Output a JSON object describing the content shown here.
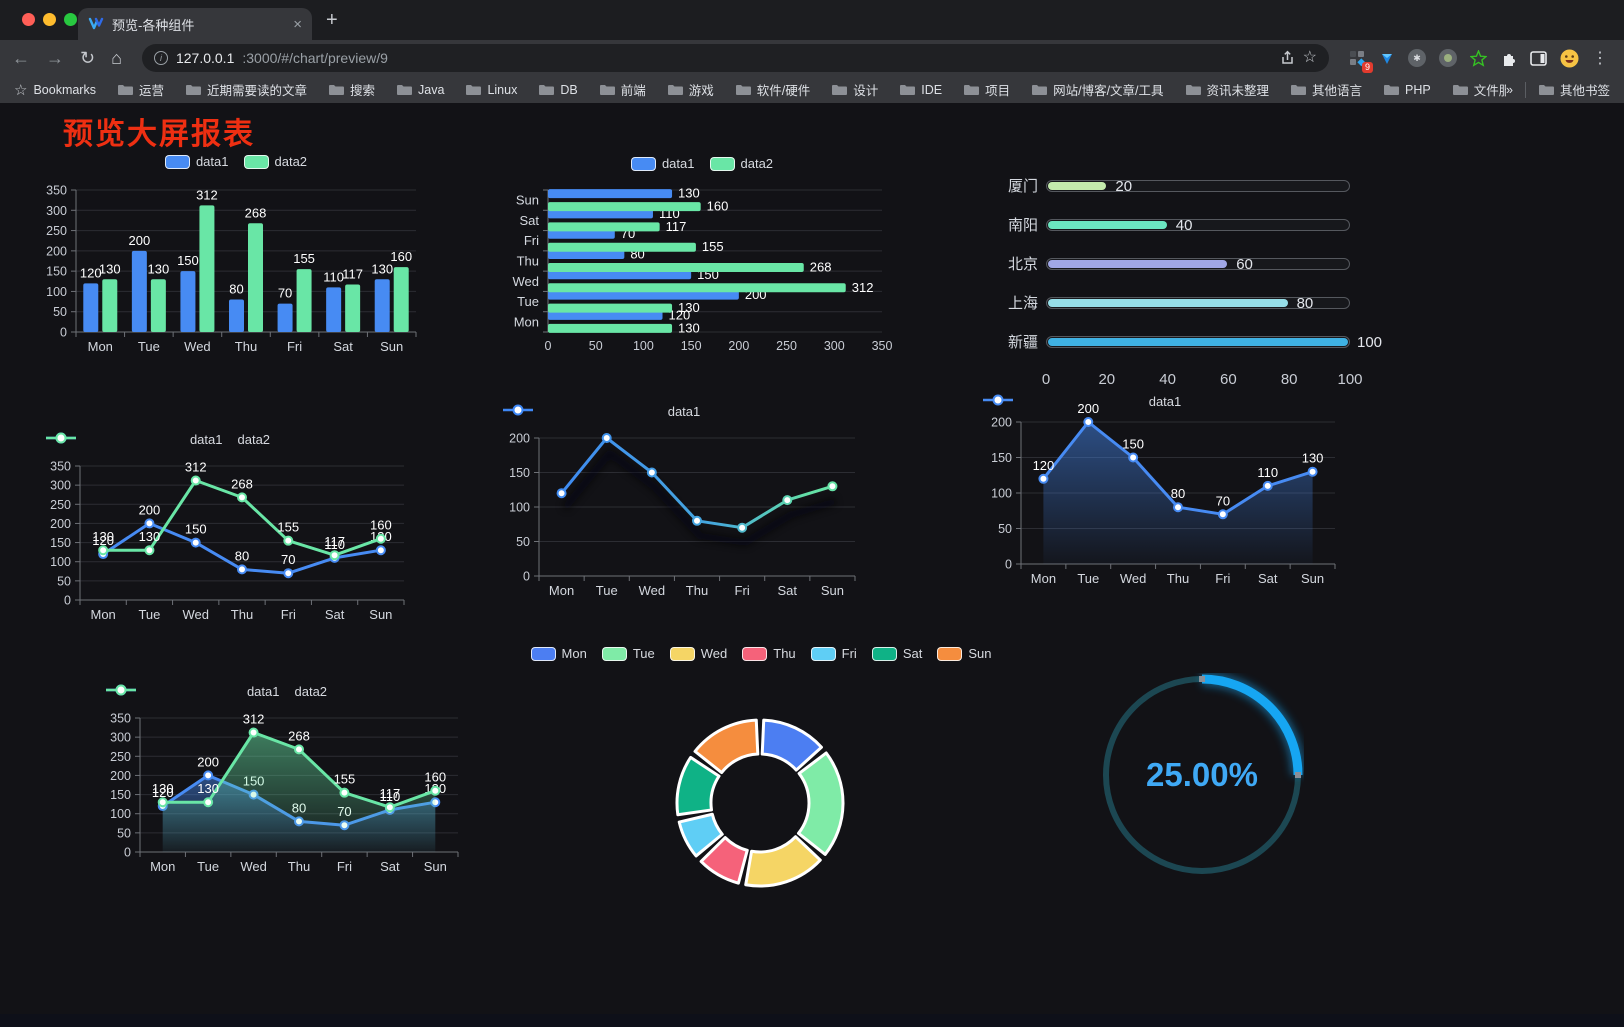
{
  "browser": {
    "tab_title": "预览-各种组件",
    "tab_close": "×",
    "new_tab": "+",
    "url_host": "127.0.0.1",
    "url_rest": ":3000/#/chart/preview/9",
    "bookmarks_label": "Bookmarks",
    "bookmarks": [
      "运营",
      "近期需要读的文章",
      "搜索",
      "Java",
      "Linux",
      "DB",
      "前端",
      "游戏",
      "软件/硬件",
      "设计",
      "IDE",
      "项目",
      "网站/博客/文章/工具",
      "资讯未整理",
      "其他语言",
      "PHP",
      "文件服务器"
    ],
    "bookmarks_overflow": "»",
    "other_bookmarks": "其他书签",
    "extensions_badge": "9",
    "menu_dots": "⋮"
  },
  "page": {
    "title": "预览大屏报表"
  },
  "chart_data": [
    {
      "id": "c1",
      "type": "bar",
      "categories": [
        "Mon",
        "Tue",
        "Wed",
        "Thu",
        "Fri",
        "Sat",
        "Sun"
      ],
      "series": [
        {
          "name": "data1",
          "color": "#478BF3",
          "values": [
            120,
            200,
            150,
            80,
            70,
            110,
            130
          ]
        },
        {
          "name": "data2",
          "color": "#69E6A6",
          "values": [
            130,
            130,
            312,
            268,
            155,
            117,
            160
          ]
        }
      ],
      "ylim": [
        0,
        350
      ],
      "yticks": [
        0,
        50,
        100,
        150,
        200,
        250,
        300,
        350
      ],
      "show_labels": true,
      "legend_pos": "top"
    },
    {
      "id": "c2",
      "type": "barh",
      "categories": [
        "Mon",
        "Tue",
        "Wed",
        "Thu",
        "Fri",
        "Sat",
        "Sun"
      ],
      "series": [
        {
          "name": "data1",
          "color": "#478BF3",
          "values": [
            120,
            200,
            150,
            80,
            70,
            110,
            130
          ]
        },
        {
          "name": "data2",
          "color": "#69E6A6",
          "values": [
            130,
            130,
            312,
            268,
            155,
            117,
            160
          ]
        }
      ],
      "xlim": [
        0,
        350
      ],
      "xticks": [
        0,
        50,
        100,
        150,
        200,
        250,
        300,
        350
      ],
      "show_labels": true,
      "legend_pos": "top"
    },
    {
      "id": "c3",
      "type": "progress",
      "max": 100,
      "items": [
        {
          "label": "厦门",
          "value": 20,
          "color": "#C4EBAD"
        },
        {
          "label": "南阳",
          "value": 40,
          "color": "#6BE6C1"
        },
        {
          "label": "北京",
          "value": 60,
          "color": "#A0A7E6"
        },
        {
          "label": "上海",
          "value": 80,
          "color": "#96DEE8"
        },
        {
          "label": "新疆",
          "value": 100,
          "color": "#3FB1E3"
        }
      ],
      "xticks": [
        0,
        20,
        40,
        60,
        80,
        100
      ]
    },
    {
      "id": "c4",
      "type": "line",
      "categories": [
        "Mon",
        "Tue",
        "Wed",
        "Thu",
        "Fri",
        "Sat",
        "Sun"
      ],
      "series": [
        {
          "name": "data1",
          "color": "#478BF3",
          "values": [
            120,
            200,
            150,
            80,
            70,
            110,
            130
          ]
        },
        {
          "name": "data2",
          "color": "#69E6A6",
          "values": [
            130,
            130,
            312,
            268,
            155,
            117,
            160
          ]
        }
      ],
      "ylim": [
        0,
        350
      ],
      "yticks": [
        0,
        50,
        100,
        150,
        200,
        250,
        300,
        350
      ],
      "show_labels": true,
      "legend_pos": "top"
    },
    {
      "id": "c5",
      "type": "line",
      "categories": [
        "Mon",
        "Tue",
        "Wed",
        "Thu",
        "Fri",
        "Sat",
        "Sun"
      ],
      "series": [
        {
          "name": "data1",
          "gradient": [
            {
              "offset": 0,
              "color": "#3E87F5"
            },
            {
              "offset": 0.55,
              "color": "#45A7DD"
            },
            {
              "offset": 0.85,
              "color": "#63DFA6"
            },
            {
              "offset": 1,
              "color": "#69E6A6"
            }
          ],
          "values": [
            120,
            200,
            150,
            80,
            70,
            110,
            130
          ]
        }
      ],
      "ylim": [
        0,
        200
      ],
      "yticks": [
        0,
        50,
        100,
        150,
        200
      ],
      "show_labels": false,
      "shadow": true,
      "legend_pos": "top"
    },
    {
      "id": "c6",
      "type": "line",
      "categories": [
        "Mon",
        "Tue",
        "Wed",
        "Thu",
        "Fri",
        "Sat",
        "Sun"
      ],
      "series": [
        {
          "name": "data1",
          "color": "#478BF3",
          "values": [
            120,
            200,
            150,
            80,
            70,
            110,
            130
          ],
          "area": true
        }
      ],
      "ylim": [
        0,
        200
      ],
      "yticks": [
        0,
        50,
        100,
        150,
        200
      ],
      "show_labels": true,
      "legend_pos": "top"
    },
    {
      "id": "c7",
      "type": "line",
      "categories": [
        "Mon",
        "Tue",
        "Wed",
        "Thu",
        "Fri",
        "Sat",
        "Sun"
      ],
      "series": [
        {
          "name": "data1",
          "color": "#478BF3",
          "values": [
            120,
            200,
            150,
            80,
            70,
            110,
            130
          ],
          "area": true
        },
        {
          "name": "data2",
          "color": "#69E6A6",
          "values": [
            130,
            130,
            312,
            268,
            155,
            117,
            160
          ],
          "area": true
        }
      ],
      "ylim": [
        0,
        350
      ],
      "yticks": [
        0,
        50,
        100,
        150,
        200,
        250,
        300,
        350
      ],
      "show_labels": true,
      "legend_pos": "top"
    },
    {
      "id": "c8",
      "type": "pie",
      "slices": [
        {
          "label": "Mon",
          "value": 120,
          "color": "#4C7EF2"
        },
        {
          "label": "Tue",
          "value": 200,
          "color": "#7FEBA7"
        },
        {
          "label": "Wed",
          "value": 150,
          "color": "#F5D565"
        },
        {
          "label": "Thu",
          "value": 80,
          "color": "#F5627A"
        },
        {
          "label": "Fri",
          "value": 70,
          "color": "#5FCEF5"
        },
        {
          "label": "Sat",
          "value": 110,
          "color": "#0FB286"
        },
        {
          "label": "Sun",
          "value": 130,
          "color": "#F58D3E"
        }
      ],
      "legend_pos": "top"
    },
    {
      "id": "c9",
      "type": "gauge",
      "value": 25,
      "display": "25.00%",
      "color": "#16A6F2",
      "track": "#1C4752"
    }
  ]
}
